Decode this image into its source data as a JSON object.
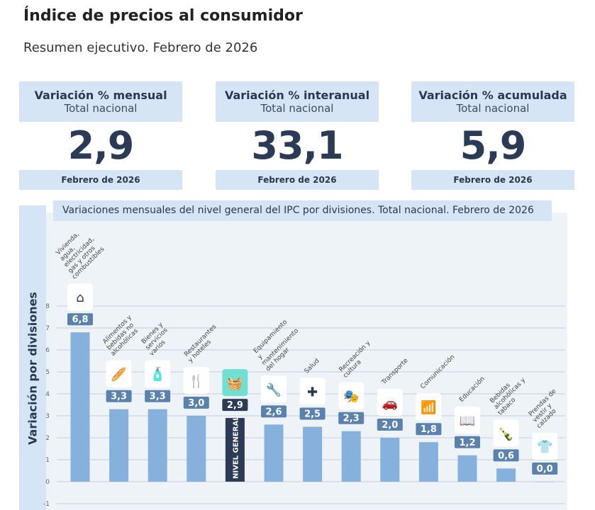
{
  "header": {
    "title": "Índice de precios al consumidor",
    "subtitle": "Resumen ejecutivo. Febrero de 2026"
  },
  "cards": [
    {
      "label": "Variación % mensual",
      "sub": "Total nacional",
      "value": "2,9",
      "footer": "Febrero de 2026"
    },
    {
      "label": "Variación % interanual",
      "sub": "Total nacional",
      "value": "33,1",
      "footer": "Febrero de 2026"
    },
    {
      "label": "Variación % acumulada",
      "sub": "Total nacional",
      "value": "5,9",
      "footer": "Febrero de 2026"
    }
  ],
  "chart_data": {
    "type": "bar",
    "title": "Variaciones mensuales del nivel general del IPC por divisiones. Total nacional. Febrero de 2026",
    "ylabel": "Variación por divisiones",
    "ylim": [
      -1,
      8
    ],
    "yticks": [
      -1,
      0,
      1,
      2,
      3,
      4,
      5,
      6,
      7,
      8
    ],
    "grid": true,
    "categories": [
      "Vivienda, agua, electricidad, gas y otros combustibles",
      "Alimentos y bebidas no alcohólicas",
      "Bienes y servicios varios",
      "Restaurantes y hoteles",
      "NIVEL GENERAL",
      "Equipamiento y mantenimiento del hogar",
      "Salud",
      "Recreación y cultura",
      "Transporte",
      "Comunicación",
      "Educación",
      "Bebidas alcohólicas y tabaco",
      "Prendas de vestir y calzado"
    ],
    "values": [
      6.8,
      3.3,
      3.3,
      3.0,
      2.9,
      2.6,
      2.5,
      2.3,
      2.0,
      1.8,
      1.2,
      0.6,
      0.0
    ],
    "labels": [
      "6,8",
      "3,3",
      "3,3",
      "3,0",
      "2,9",
      "2,6",
      "2,5",
      "2,3",
      "2,0",
      "1,8",
      "1,2",
      "0,6",
      "0,0"
    ],
    "icons": [
      "house-utilities-icon",
      "food-icon",
      "goods-services-icon",
      "restaurant-hotel-icon",
      "basket-icon",
      "tools-icon",
      "health-cross-icon",
      "theater-masks-icon",
      "car-icon",
      "wifi-icon",
      "book-icon",
      "bottle-cigarette-icon",
      "tshirt-icon"
    ],
    "colors": {
      "bar": "#86b1dd",
      "highlight_bar": "#2b3a55",
      "label_bg": "#5a82ad",
      "highlight_icon_bg": "#6fe0d2"
    }
  }
}
